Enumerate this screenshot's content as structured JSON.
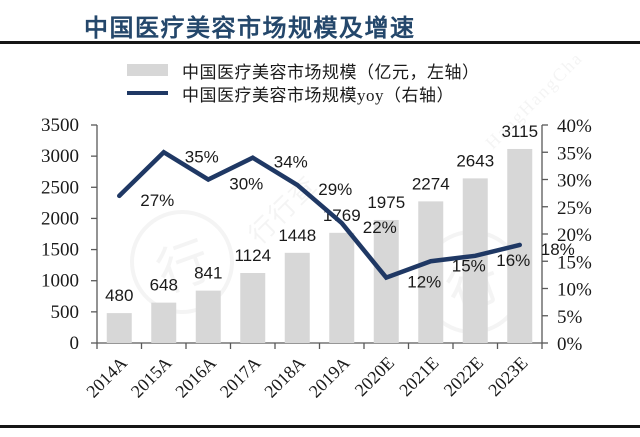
{
  "page": {
    "title": "中国医疗美容市场规模及增速",
    "watermark": {
      "brand": "行行查",
      "brand_latin": "HangHangCha",
      "logo_char": "行"
    }
  },
  "legend": {
    "items": [
      {
        "label": "中国医疗美容市场规模（亿元，左轴）",
        "swatch": "bar",
        "color": "#D7D7D7"
      },
      {
        "label": "中国医疗美容市场规模yoy（右轴）",
        "swatch": "line",
        "color": "#1F3864"
      }
    ]
  },
  "chart_data": {
    "type": "bar",
    "combo": "bar+line",
    "title": "中国医疗美容市场规模及增速",
    "categories": [
      "2014A",
      "2015A",
      "2016A",
      "2017A",
      "2018A",
      "2019A",
      "2020E",
      "2021E",
      "2022E",
      "2023E"
    ],
    "series": [
      {
        "name": "中国医疗美容市场规模（亿元，左轴）",
        "type": "bar",
        "axis": "left",
        "color": "#D7D7D7",
        "values": [
          480,
          648,
          841,
          1124,
          1448,
          1769,
          1975,
          2274,
          2643,
          3115
        ],
        "data_labels": [
          "480",
          "648",
          "841",
          "1124",
          "1448",
          "1769",
          "1975",
          "2274",
          "2643",
          "3115"
        ]
      },
      {
        "name": "中国医疗美容市场规模yoy（右轴）",
        "type": "line",
        "axis": "right",
        "color": "#1F3864",
        "unit": "%",
        "values": [
          27,
          35,
          30,
          34,
          29,
          22,
          12,
          15,
          16,
          18
        ],
        "data_labels": [
          "27%",
          "35%",
          "30%",
          "34%",
          "29%",
          "22%",
          "12%",
          "15%",
          "16%",
          "18%"
        ]
      }
    ],
    "left_axis": {
      "min": 0,
      "max": 3500,
      "step": 500,
      "tick_labels": [
        "0",
        "500",
        "1000",
        "1500",
        "2000",
        "2500",
        "3000",
        "3500"
      ]
    },
    "right_axis": {
      "min": 0,
      "max": 40,
      "step": 5,
      "tick_labels": [
        "0%",
        "5%",
        "10%",
        "15%",
        "20%",
        "25%",
        "30%",
        "35%",
        "40%"
      ]
    },
    "grid": false,
    "legend_position": "top"
  }
}
